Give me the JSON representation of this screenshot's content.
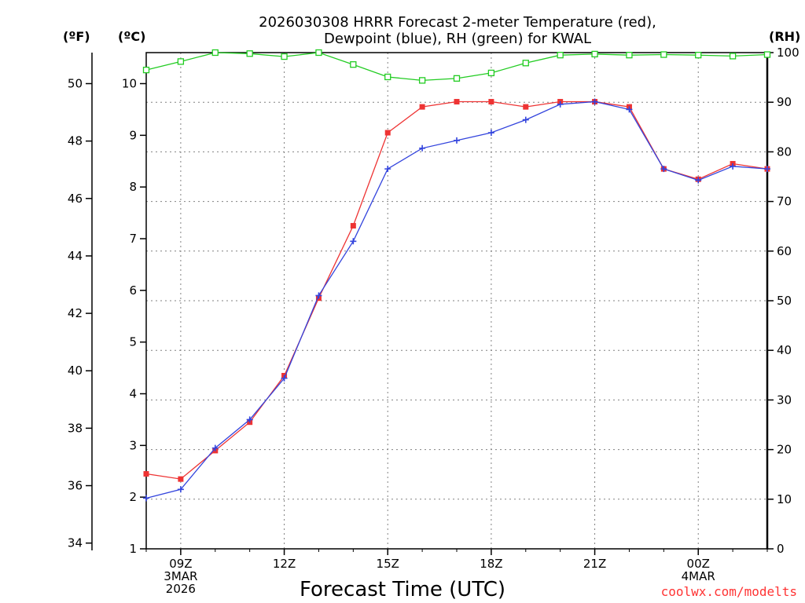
{
  "chart_data": {
    "type": "line",
    "title_line1": "2026030308 HRRR Forecast 2-meter Temperature (red),",
    "title_line2": "Dewpoint (blue), RH (green) for KWAL",
    "xlabel": "Forecast Time (UTC)",
    "unit_f": "(ºF)",
    "unit_c": "(ºC)",
    "unit_rh": "(RH)",
    "brand": "coolwx.com/modelts",
    "x_hours": [
      8,
      9,
      10,
      11,
      12,
      13,
      14,
      15,
      16,
      17,
      18,
      19,
      20,
      21,
      22,
      23,
      24,
      25,
      26
    ],
    "x_ticks": [
      {
        "hour": 9,
        "lines": [
          "09Z",
          "3MAR",
          "2026"
        ]
      },
      {
        "hour": 12,
        "lines": [
          "12Z"
        ]
      },
      {
        "hour": 15,
        "lines": [
          "15Z"
        ]
      },
      {
        "hour": 18,
        "lines": [
          "18Z"
        ]
      },
      {
        "hour": 21,
        "lines": [
          "21Z"
        ]
      },
      {
        "hour": 24,
        "lines": [
          "00Z",
          "4MAR"
        ]
      }
    ],
    "c_axis": {
      "min": 1,
      "max": 10.6,
      "ticks": [
        1,
        2,
        3,
        4,
        5,
        6,
        7,
        8,
        9,
        10
      ]
    },
    "f_axis": {
      "ticks": [
        34,
        36,
        38,
        40,
        42,
        44,
        46,
        48,
        50
      ]
    },
    "rh_axis": {
      "min": 0,
      "max": 100,
      "ticks": [
        0,
        10,
        20,
        30,
        40,
        50,
        60,
        70,
        80,
        90,
        100
      ]
    },
    "series": [
      {
        "name": "Temperature",
        "color": "#ee3333",
        "axis": "c",
        "values": [
          2.45,
          2.35,
          2.9,
          3.45,
          4.35,
          5.85,
          7.25,
          9.05,
          9.55,
          9.65,
          9.65,
          9.55,
          9.65,
          9.65,
          9.55,
          8.35,
          8.15,
          8.45,
          8.35
        ]
      },
      {
        "name": "Dewpoint",
        "color": "#3344dd",
        "axis": "c",
        "values": [
          1.98,
          2.15,
          2.95,
          3.5,
          4.3,
          5.9,
          6.95,
          8.35,
          8.75,
          8.9,
          9.05,
          9.3,
          9.6,
          9.65,
          9.5,
          8.35,
          8.13,
          8.4,
          8.35
        ]
      },
      {
        "name": "RH",
        "color": "#22cc22",
        "axis": "rh",
        "values": [
          96.5,
          98.2,
          100,
          99.8,
          99.2,
          100,
          97.6,
          95.1,
          94.4,
          94.8,
          95.9,
          97.9,
          99.5,
          99.7,
          99.5,
          99.6,
          99.5,
          99.3,
          99.6
        ]
      }
    ]
  }
}
